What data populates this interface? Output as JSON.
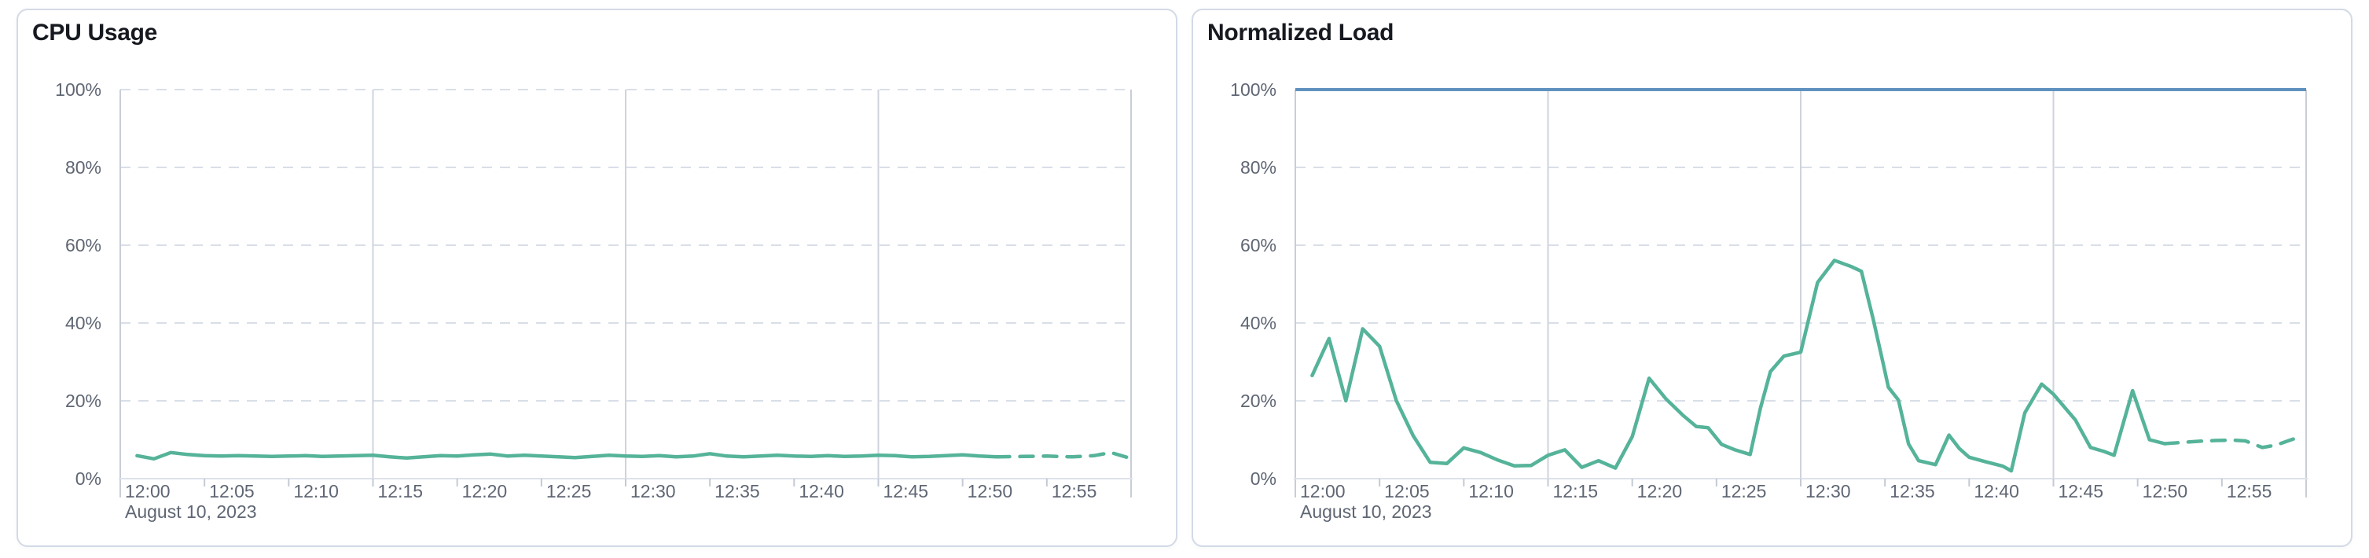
{
  "chart_data": [
    {
      "type": "line",
      "title": "CPU Usage",
      "x_axis": {
        "tick_labels": [
          "12:00",
          "12:05",
          "12:10",
          "12:15",
          "12:20",
          "12:25",
          "12:30",
          "12:35",
          "12:40",
          "12:45",
          "12:50",
          "12:55"
        ],
        "date_label": "August 10, 2023",
        "range_minutes": [
          0,
          60
        ],
        "gridlines_at": [
          "12:15",
          "12:30",
          "12:45",
          "13:00"
        ]
      },
      "y_axis": {
        "tick_labels": [
          "0%",
          "20%",
          "40%",
          "60%",
          "80%",
          "100%"
        ],
        "range": [
          0,
          100
        ],
        "unit": "%"
      },
      "threshold": null,
      "series": [
        {
          "name": "cpu-usage",
          "style": "solid",
          "color": "#55B399",
          "points": [
            [
              1,
              5.9
            ],
            [
              2,
              5.1
            ],
            [
              3,
              6.7
            ],
            [
              4,
              6.2
            ],
            [
              5,
              5.9
            ],
            [
              6,
              5.8
            ],
            [
              7,
              5.9
            ],
            [
              8,
              5.8
            ],
            [
              9,
              5.7
            ],
            [
              10,
              5.8
            ],
            [
              11,
              5.9
            ],
            [
              12,
              5.7
            ],
            [
              13,
              5.8
            ],
            [
              14,
              5.9
            ],
            [
              15,
              6.0
            ],
            [
              16,
              5.6
            ],
            [
              17,
              5.3
            ],
            [
              18,
              5.6
            ],
            [
              19,
              5.9
            ],
            [
              20,
              5.8
            ],
            [
              21,
              6.1
            ],
            [
              22,
              6.3
            ],
            [
              23,
              5.8
            ],
            [
              24,
              6.0
            ],
            [
              25,
              5.8
            ],
            [
              26,
              5.6
            ],
            [
              27,
              5.4
            ],
            [
              28,
              5.7
            ],
            [
              29,
              6.0
            ],
            [
              30,
              5.8
            ],
            [
              31,
              5.7
            ],
            [
              32,
              5.9
            ],
            [
              33,
              5.6
            ],
            [
              34,
              5.8
            ],
            [
              35,
              6.4
            ],
            [
              36,
              5.8
            ],
            [
              37,
              5.6
            ],
            [
              38,
              5.8
            ],
            [
              39,
              6.0
            ],
            [
              40,
              5.8
            ],
            [
              41,
              5.7
            ],
            [
              42,
              5.9
            ],
            [
              43,
              5.7
            ],
            [
              44,
              5.8
            ],
            [
              45,
              6.0
            ],
            [
              46,
              5.9
            ],
            [
              47,
              5.6
            ],
            [
              48,
              5.7
            ],
            [
              49,
              5.9
            ],
            [
              50,
              6.1
            ],
            [
              51,
              5.8
            ],
            [
              52,
              5.6
            ]
          ]
        },
        {
          "name": "cpu-usage-partial-bucket",
          "style": "dashed",
          "color": "#55B399",
          "points": [
            [
              52,
              5.6
            ],
            [
              53.5,
              5.7
            ],
            [
              55,
              5.8
            ],
            [
              56.5,
              5.6
            ],
            [
              57.8,
              5.9
            ],
            [
              58.8,
              6.7
            ],
            [
              59.9,
              5.3
            ]
          ]
        }
      ]
    },
    {
      "type": "line",
      "title": "Normalized Load",
      "x_axis": {
        "tick_labels": [
          "12:00",
          "12:05",
          "12:10",
          "12:15",
          "12:20",
          "12:25",
          "12:30",
          "12:35",
          "12:40",
          "12:45",
          "12:50",
          "12:55"
        ],
        "date_label": "August 10, 2023",
        "range_minutes": [
          0,
          60
        ],
        "gridlines_at": [
          "12:15",
          "12:30",
          "12:45",
          "13:00"
        ]
      },
      "y_axis": {
        "tick_labels": [
          "0%",
          "20%",
          "40%",
          "60%",
          "80%",
          "100%"
        ],
        "range": [
          0,
          100
        ],
        "unit": "%"
      },
      "threshold": {
        "value": 100,
        "color": "#6092C0"
      },
      "series": [
        {
          "name": "normalized-load",
          "style": "solid",
          "color": "#55B399",
          "points": [
            [
              1,
              26.5
            ],
            [
              2,
              36
            ],
            [
              3,
              20
            ],
            [
              4,
              38.5
            ],
            [
              5,
              34
            ],
            [
              6,
              20
            ],
            [
              7,
              11
            ],
            [
              8,
              4.2
            ],
            [
              9,
              3.9
            ],
            [
              10,
              7.9
            ],
            [
              11,
              6.7
            ],
            [
              12,
              4.8
            ],
            [
              13,
              3.3
            ],
            [
              14,
              3.4
            ],
            [
              15,
              6
            ],
            [
              16,
              7.4
            ],
            [
              17,
              2.9
            ],
            [
              18,
              4.6
            ],
            [
              19,
              2.7
            ],
            [
              20,
              10.8
            ],
            [
              21,
              25.8
            ],
            [
              22,
              20.5
            ],
            [
              23,
              16.3
            ],
            [
              23.8,
              13.4
            ],
            [
              24.5,
              13.1
            ],
            [
              25.3,
              8.8
            ],
            [
              26.1,
              7.4
            ],
            [
              27,
              6.2
            ],
            [
              27.6,
              18
            ],
            [
              28.2,
              27.5
            ],
            [
              29,
              31.5
            ],
            [
              30,
              32.5
            ],
            [
              31,
              50.4
            ],
            [
              32,
              56.1
            ],
            [
              33,
              54.5
            ],
            [
              33.6,
              53.3
            ],
            [
              34.3,
              41
            ],
            [
              34.9,
              29.5
            ],
            [
              35.2,
              23.5
            ],
            [
              35.8,
              20.2
            ],
            [
              36.4,
              8.9
            ],
            [
              37,
              4.6
            ],
            [
              38,
              3.6
            ],
            [
              38.8,
              11.2
            ],
            [
              39.4,
              7.8
            ],
            [
              40,
              5.5
            ],
            [
              41,
              4.3
            ],
            [
              42,
              3.2
            ],
            [
              42.5,
              2
            ],
            [
              43.3,
              16.9
            ],
            [
              44.3,
              24.3
            ],
            [
              45,
              21.7
            ],
            [
              46.3,
              15.1
            ],
            [
              47.2,
              8
            ],
            [
              48,
              7
            ],
            [
              48.6,
              6
            ],
            [
              49.7,
              22.6
            ],
            [
              50.7,
              10
            ],
            [
              51.6,
              9
            ]
          ]
        },
        {
          "name": "normalized-load-partial-bucket",
          "style": "dashed",
          "color": "#55B399",
          "points": [
            [
              51.6,
              9
            ],
            [
              52.6,
              9.3
            ],
            [
              53.6,
              9.6
            ],
            [
              54.6,
              9.8
            ],
            [
              55.6,
              9.9
            ],
            [
              56.4,
              9.7
            ],
            [
              57.4,
              8
            ],
            [
              58.2,
              8.6
            ],
            [
              59.4,
              10.4
            ]
          ]
        }
      ]
    }
  ]
}
